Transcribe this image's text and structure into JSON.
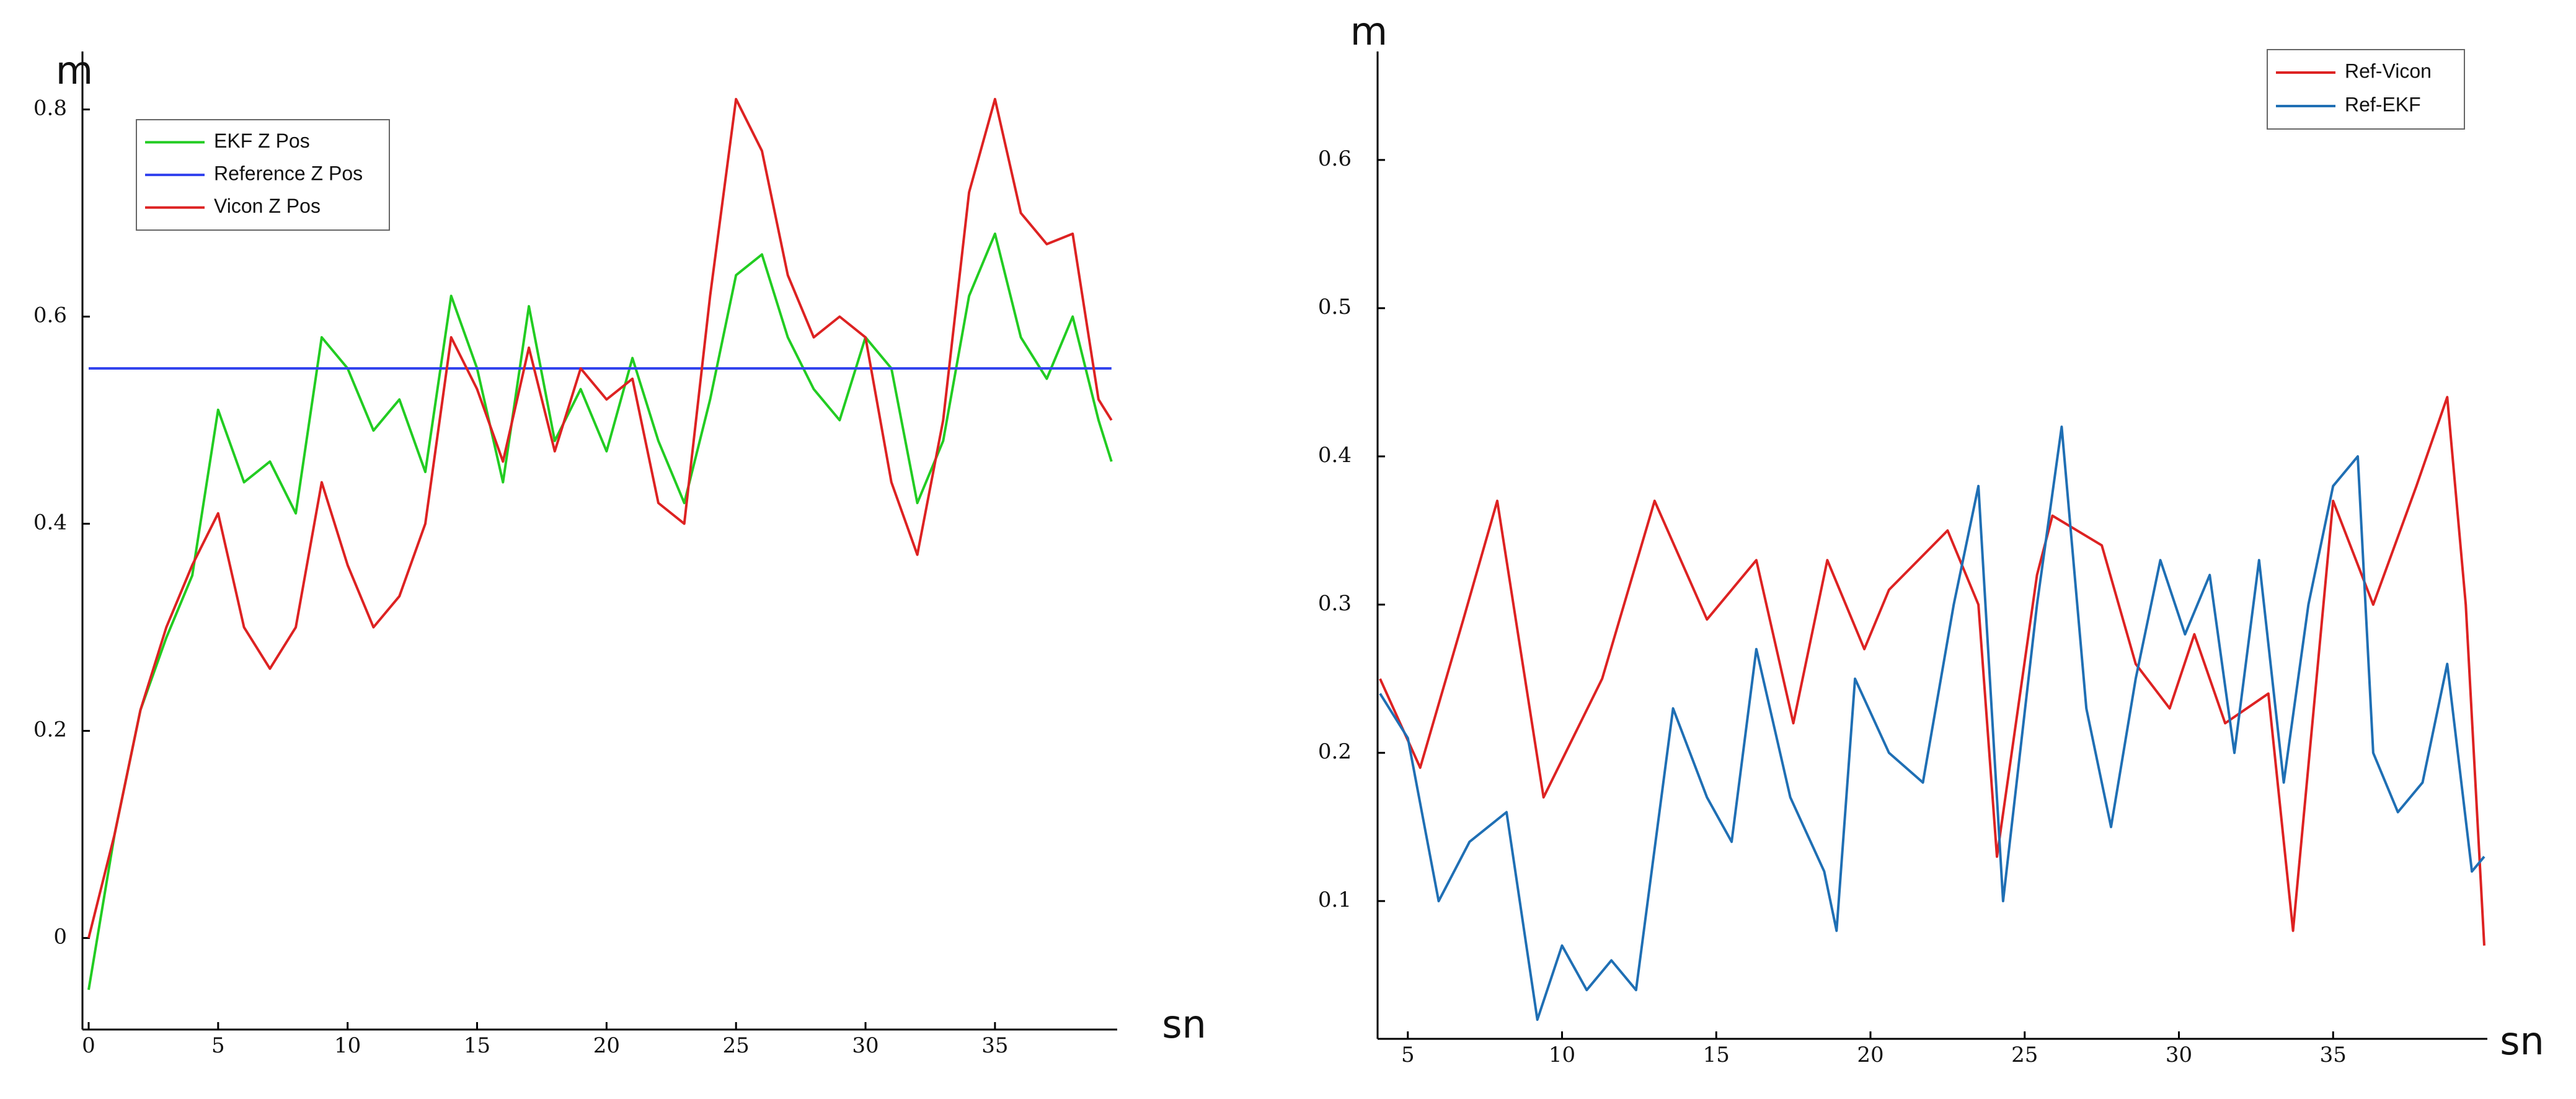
{
  "chart_data": [
    {
      "type": "line",
      "y_label": "m",
      "x_label": "sn",
      "xlim": [
        0,
        39.6
      ],
      "ylim": [
        -0.086,
        0.85
      ],
      "xticks": [
        0,
        5,
        10,
        15,
        20,
        25,
        30,
        35
      ],
      "yticks": [
        0,
        0.2,
        0.4,
        0.6,
        0.8
      ],
      "legend": "upper left",
      "series": [
        {
          "name": "EKF Z Pos",
          "color": "#22cc22",
          "x": [
            0,
            1,
            2,
            3,
            4,
            5,
            6,
            7,
            8,
            9,
            10,
            11,
            12,
            13,
            14,
            15,
            16,
            17,
            18,
            19,
            20,
            21,
            22,
            23,
            24,
            25,
            26,
            27,
            28,
            29,
            30,
            31,
            32,
            33,
            34,
            35,
            36,
            37,
            38,
            39,
            39.5
          ],
          "values": [
            -0.05,
            0.1,
            0.22,
            0.29,
            0.35,
            0.51,
            0.44,
            0.46,
            0.41,
            0.58,
            0.55,
            0.49,
            0.52,
            0.45,
            0.62,
            0.55,
            0.44,
            0.61,
            0.48,
            0.53,
            0.47,
            0.56,
            0.48,
            0.42,
            0.52,
            0.64,
            0.66,
            0.58,
            0.53,
            0.5,
            0.58,
            0.55,
            0.42,
            0.48,
            0.62,
            0.68,
            0.58,
            0.54,
            0.6,
            0.5,
            0.46
          ]
        },
        {
          "name": "Reference Z Pos",
          "color": "#3344ee",
          "x": [
            0,
            39.5
          ],
          "values": [
            0.55,
            0.55
          ]
        },
        {
          "name": "Vicon Z Pos",
          "color": "#dd2222",
          "x": [
            0,
            1,
            2,
            3,
            4,
            5,
            6,
            7,
            8,
            9,
            10,
            11,
            12,
            13,
            14,
            15,
            16,
            17,
            18,
            19,
            20,
            21,
            22,
            23,
            24,
            25,
            26,
            27,
            28,
            29,
            30,
            31,
            32,
            33,
            34,
            35,
            36,
            37,
            38,
            39,
            39.5
          ],
          "values": [
            0,
            0.1,
            0.22,
            0.3,
            0.36,
            0.41,
            0.3,
            0.26,
            0.3,
            0.44,
            0.36,
            0.3,
            0.33,
            0.4,
            0.58,
            0.53,
            0.46,
            0.57,
            0.47,
            0.55,
            0.52,
            0.54,
            0.42,
            0.4,
            0.62,
            0.81,
            0.76,
            0.64,
            0.58,
            0.6,
            0.58,
            0.44,
            0.37,
            0.5,
            0.72,
            0.81,
            0.7,
            0.67,
            0.68,
            0.52,
            0.5
          ]
        }
      ]
    },
    {
      "type": "line",
      "y_label": "m",
      "x_label": "sn",
      "xlim": [
        4.1,
        39.9
      ],
      "ylim": [
        0.015,
        0.669
      ],
      "xticks": [
        5,
        10,
        15,
        20,
        25,
        30,
        35
      ],
      "yticks": [
        0.1,
        0.2,
        0.3,
        0.4,
        0.5,
        0.6
      ],
      "legend": "upper right",
      "series": [
        {
          "name": "Ref-Vicon",
          "color": "#dd2222",
          "x": [
            4.1,
            5.4,
            6.8,
            7.9,
            9.4,
            11.3,
            13.0,
            14.7,
            16.3,
            17.5,
            18.6,
            19.8,
            20.6,
            22.5,
            23.5,
            24.1,
            25.4,
            25.9,
            27.5,
            28.6,
            29.7,
            30.5,
            31.5,
            32.9,
            33.7,
            35.0,
            36.3,
            37.7,
            38.7,
            39.3,
            39.9
          ],
          "values": [
            0.25,
            0.19,
            0.29,
            0.37,
            0.17,
            0.25,
            0.37,
            0.29,
            0.33,
            0.22,
            0.33,
            0.27,
            0.31,
            0.35,
            0.3,
            0.13,
            0.32,
            0.36,
            0.34,
            0.26,
            0.23,
            0.28,
            0.22,
            0.24,
            0.08,
            0.37,
            0.3,
            0.38,
            0.44,
            0.3,
            0.07
          ]
        },
        {
          "name": "Ref-EKF",
          "color": "#1f6fb4",
          "x": [
            4.1,
            5.0,
            6.0,
            7.0,
            8.2,
            9.2,
            10.0,
            10.8,
            11.6,
            12.4,
            13.6,
            14.7,
            15.5,
            16.3,
            17.4,
            18.5,
            18.9,
            19.5,
            20.6,
            21.7,
            22.7,
            23.5,
            24.3,
            25.4,
            26.2,
            27.0,
            27.8,
            28.6,
            29.4,
            30.2,
            31.0,
            31.8,
            32.6,
            33.4,
            34.2,
            35.0,
            35.8,
            36.3,
            37.1,
            37.9,
            38.7,
            39.5,
            39.9
          ],
          "values": [
            0.24,
            0.21,
            0.1,
            0.14,
            0.16,
            0.02,
            0.07,
            0.04,
            0.06,
            0.04,
            0.23,
            0.17,
            0.14,
            0.27,
            0.17,
            0.12,
            0.08,
            0.25,
            0.2,
            0.18,
            0.3,
            0.38,
            0.1,
            0.3,
            0.42,
            0.23,
            0.15,
            0.25,
            0.33,
            0.28,
            0.32,
            0.2,
            0.33,
            0.18,
            0.3,
            0.38,
            0.4,
            0.2,
            0.16,
            0.18,
            0.26,
            0.12,
            0.13
          ]
        }
      ]
    }
  ]
}
